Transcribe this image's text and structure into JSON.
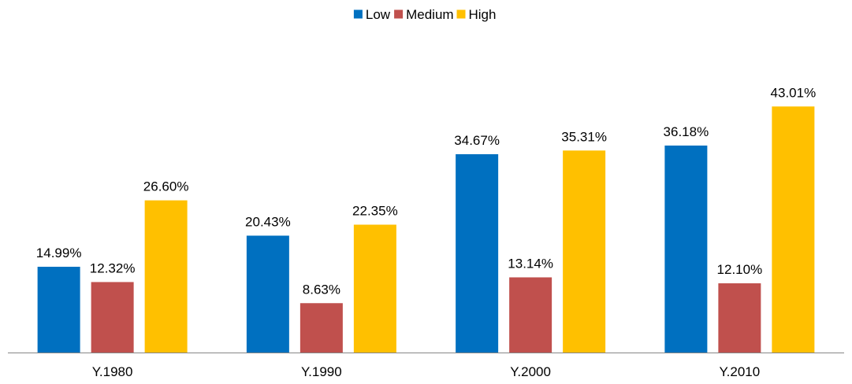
{
  "chart_data": {
    "type": "bar",
    "categories": [
      "Y.1980",
      "Y.1990",
      "Y.2000",
      "Y.2010"
    ],
    "series": [
      {
        "name": "Low",
        "color": "#0070C0",
        "values": [
          14.99,
          20.43,
          34.67,
          36.18
        ],
        "labels": [
          "14.99%",
          "20.43%",
          "34.67%",
          "36.18%"
        ]
      },
      {
        "name": "Medium",
        "color": "#C0504D",
        "values": [
          12.32,
          8.63,
          13.14,
          12.1
        ],
        "labels": [
          "12.32%",
          "8.63%",
          "13.14%",
          "12.10%"
        ]
      },
      {
        "name": "High",
        "color": "#FFC000",
        "values": [
          26.6,
          22.35,
          35.31,
          43.01
        ],
        "labels": [
          "26.60%",
          "22.35%",
          "35.31%",
          "43.01%"
        ]
      }
    ],
    "ylim": [
      0,
      50
    ],
    "grid": false,
    "legend_position": "top-center",
    "value_axis_visible": false
  }
}
